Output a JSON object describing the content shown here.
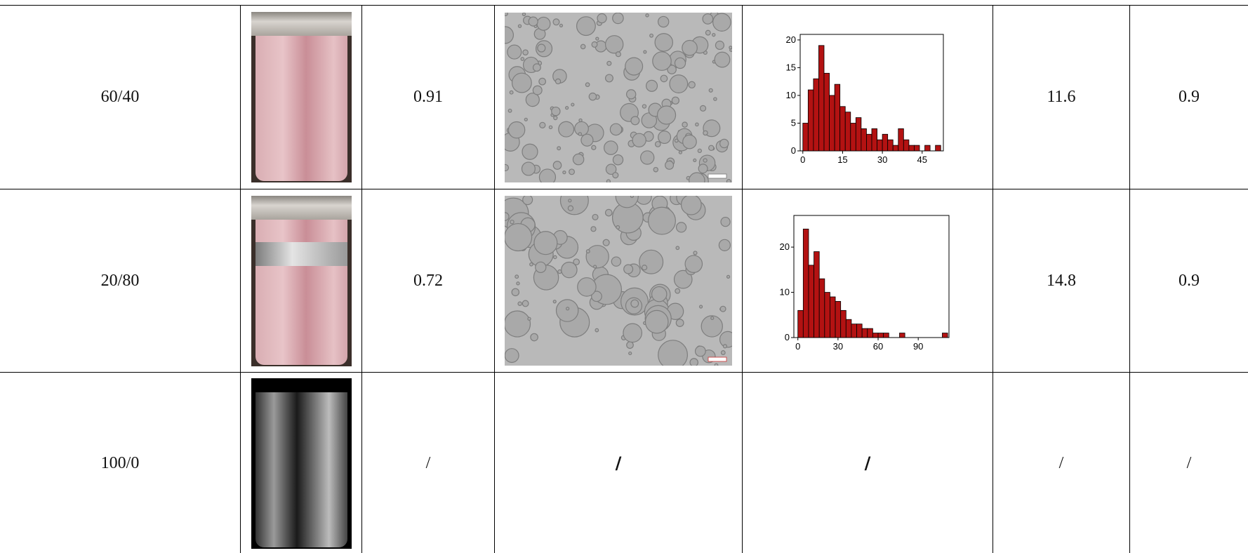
{
  "table": {
    "rows": [
      {
        "ratio": "60/40",
        "value1": "0.91",
        "size": "11.6",
        "value2": "0.9",
        "histogram": {
          "type": "histogram",
          "color": "#b31212",
          "bins": [
            0,
            2,
            4,
            6,
            8,
            10,
            12,
            14,
            16,
            18,
            20,
            22,
            24,
            26,
            28,
            30,
            32,
            34,
            36,
            38,
            40,
            42,
            44,
            46,
            48,
            50,
            52
          ],
          "values": [
            5,
            11,
            13,
            19,
            14,
            10,
            12,
            8,
            7,
            5,
            6,
            4,
            3,
            4,
            2,
            3,
            2,
            1,
            4,
            2,
            1,
            1,
            0,
            1,
            0,
            1
          ],
          "xlim": [
            -1,
            53
          ],
          "ylim": [
            0,
            21
          ],
          "xticks": [
            0,
            15,
            30,
            45
          ],
          "yticks": [
            0,
            5,
            10,
            15,
            20
          ]
        }
      },
      {
        "ratio": "20/80",
        "value1": "0.72",
        "size": "14.8",
        "value2": "0.9",
        "histogram": {
          "type": "histogram",
          "color": "#b31212",
          "bins": [
            0,
            4,
            8,
            12,
            16,
            20,
            24,
            28,
            32,
            36,
            40,
            44,
            48,
            52,
            56,
            60,
            64,
            68,
            72,
            76,
            80,
            84,
            88,
            92,
            96,
            100,
            104,
            108,
            112
          ],
          "values": [
            6,
            24,
            16,
            19,
            13,
            10,
            9,
            8,
            6,
            4,
            3,
            3,
            2,
            2,
            1,
            1,
            1,
            0,
            0,
            1,
            0,
            0,
            0,
            0,
            0,
            0,
            0,
            1
          ],
          "xlim": [
            -3,
            113
          ],
          "ylim": [
            0,
            27
          ],
          "xticks": [
            0,
            30,
            60,
            90
          ],
          "yticks": [
            0,
            10,
            20
          ]
        }
      },
      {
        "ratio": "100/0",
        "value1": "/",
        "micrograph": "/",
        "histogram_text": "/",
        "size": "/",
        "value2": "/"
      }
    ]
  }
}
